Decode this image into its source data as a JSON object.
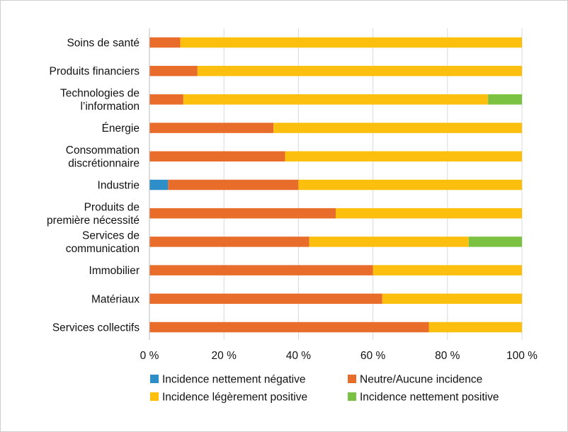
{
  "chart_data": {
    "type": "bar",
    "orientation": "horizontal",
    "stacked": true,
    "categories": [
      [
        "Soins de santé"
      ],
      [
        "Produits financiers"
      ],
      [
        "Technologies de",
        "l’information"
      ],
      [
        "Énergie"
      ],
      [
        "Consommation",
        "discrétionnaire"
      ],
      [
        "Industrie"
      ],
      [
        "Produits de",
        "première nécessité"
      ],
      [
        "Services de",
        "communication"
      ],
      [
        "Immobilier"
      ],
      [
        "Matériaux"
      ],
      [
        "Services collectifs"
      ]
    ],
    "series": [
      {
        "name": "Incidence nettement négative",
        "color": "#2e8ec8",
        "values": [
          0,
          0,
          0,
          0,
          0,
          5,
          0,
          0,
          0,
          0,
          0
        ]
      },
      {
        "name": "Neutre/Aucune incidence",
        "color": "#e86d2a",
        "values": [
          8.3,
          12.9,
          9.1,
          33.3,
          36.4,
          35,
          50,
          42.9,
          60,
          62.5,
          75
        ]
      },
      {
        "name": "Incidence légèrement positive",
        "color": "#fcbf0e",
        "values": [
          91.7,
          87.1,
          81.8,
          66.7,
          63.6,
          60,
          50,
          42.8,
          40,
          37.5,
          25
        ]
      },
      {
        "name": "Incidence nettement positive",
        "color": "#7cc242",
        "values": [
          0,
          0,
          9.1,
          0,
          0,
          0,
          0,
          14.3,
          0,
          0,
          0
        ]
      }
    ],
    "xlim": [
      0,
      100
    ],
    "xticks": [
      "0 %",
      "20 %",
      "40 %",
      "60 %",
      "80 %",
      "100 %"
    ],
    "xtick_values": [
      0,
      20,
      40,
      60,
      80,
      100
    ],
    "grid": "vertical",
    "legend_position": "bottom"
  }
}
